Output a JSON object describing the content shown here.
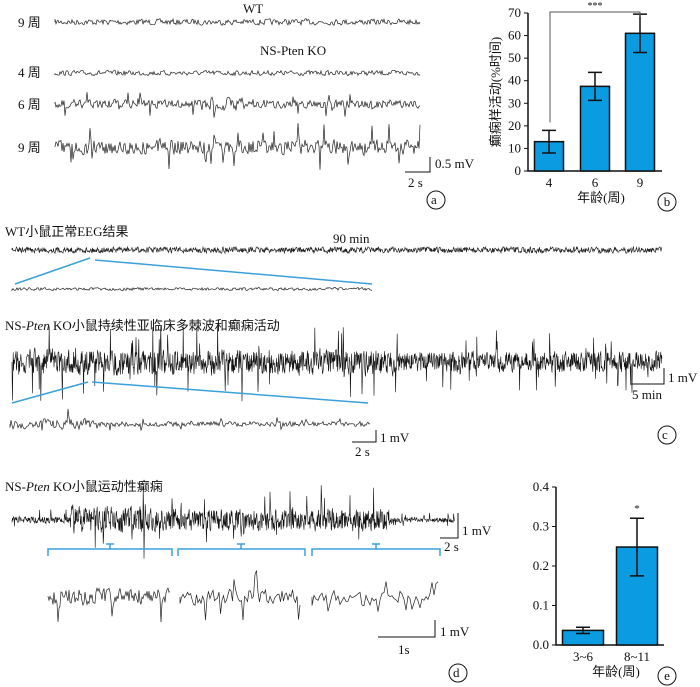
{
  "panel_a": {
    "wt_title": "WT",
    "ko_title": "NS-Pten KO",
    "rows": [
      "9 周",
      "4 周",
      "6 周",
      "9 周"
    ],
    "scale_mv": "0.5 mV",
    "scale_s": "2 s",
    "label": "a"
  },
  "panel_c": {
    "wt_title": "WT小鼠正常EEG结果",
    "duration": "90 min",
    "ko_title_pre": "NS-",
    "ko_title_italic": "Pten",
    "ko_title_post": " KO小鼠持续性亚临床多棘波和癫痫活动",
    "scale1_mv": "1 mV",
    "scale1_t": "5 min",
    "scale2_mv": "1 mV",
    "scale2_t": "2 s",
    "label": "c"
  },
  "panel_d": {
    "title_pre": "NS-",
    "title_italic": "Pten",
    "title_post": " KO小鼠运动性癫痫",
    "scale1_mv": "1 mV",
    "scale1_t": "2 s",
    "scale2_mv": "1 mV",
    "scale2_t": "1s",
    "label": "d"
  },
  "colors": {
    "bar": "#0a9be0",
    "bracket": "#3aa0d8",
    "trace": "#222222"
  },
  "chart_data": [
    {
      "id": "b",
      "type": "bar",
      "categories": [
        "4",
        "6",
        "9"
      ],
      "values": [
        13,
        37.5,
        61
      ],
      "errors": [
        5,
        6.2,
        8.5
      ],
      "xlabel": "年龄(周)",
      "ylabel": "癫痫样活动(%时间)",
      "ylim": [
        0,
        70
      ],
      "yticks": [
        "0",
        "10",
        "20",
        "30",
        "40",
        "50",
        "60",
        "70"
      ],
      "annotation": "***",
      "label": "b"
    },
    {
      "id": "e",
      "type": "bar",
      "categories": [
        "3~6",
        "8~11"
      ],
      "values": [
        0.037,
        0.248
      ],
      "errors": [
        0.008,
        0.073
      ],
      "xlabel": "年龄(周)",
      "ylabel": "",
      "ylim": [
        0,
        0.4
      ],
      "yticks": [
        "0.0",
        "0.1",
        "0.2",
        "0.3",
        "0.4"
      ],
      "annotation": "*",
      "label": "e"
    }
  ]
}
